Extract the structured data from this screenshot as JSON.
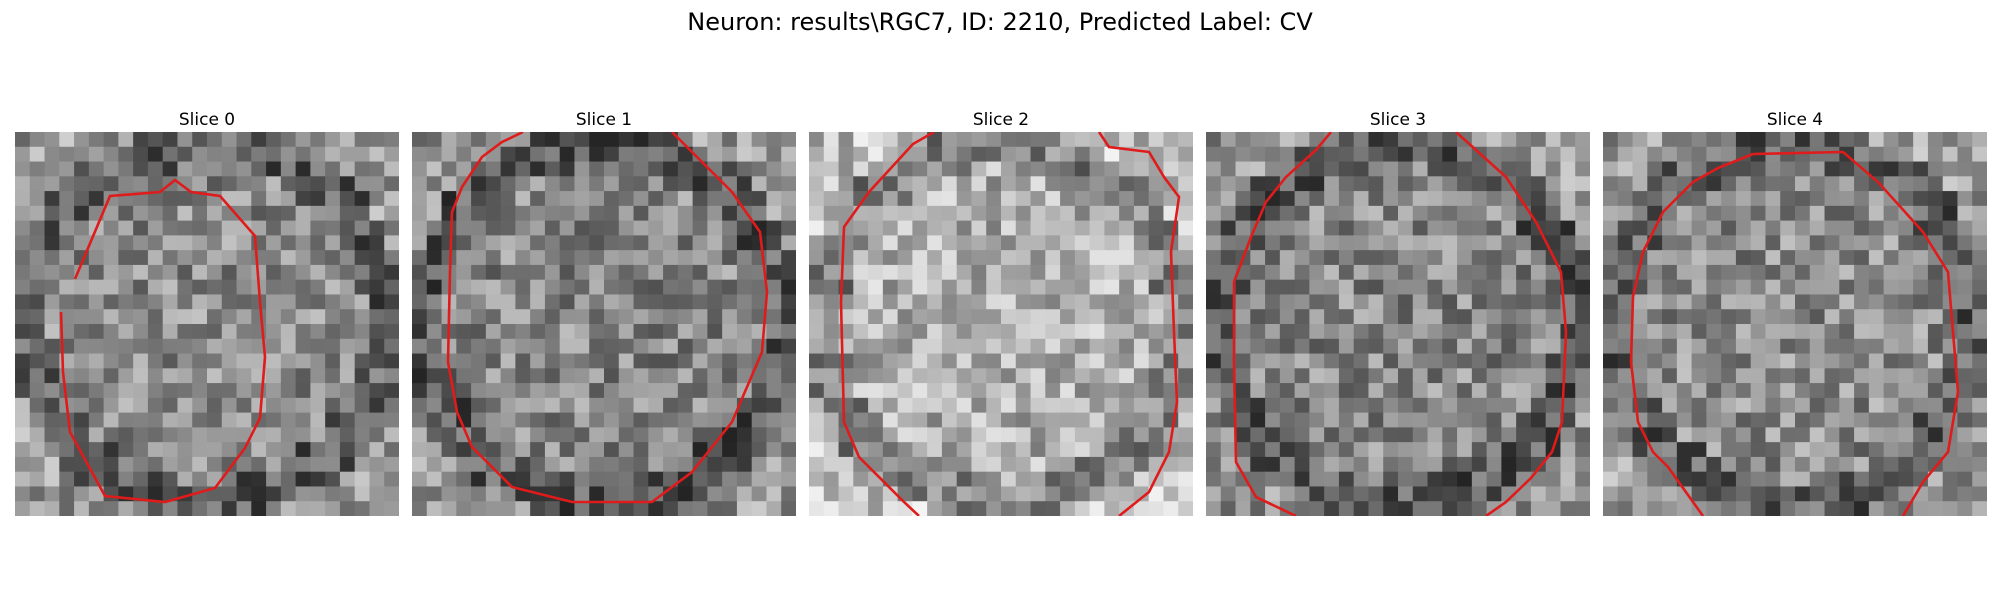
{
  "figure": {
    "title": "Neuron: results\\RGC7, ID: 2210, Predicted Label: CV",
    "panels": [
      {
        "title": "Slice 0",
        "tone": "mixed",
        "contour_color": "#e01b1b"
      },
      {
        "title": "Slice 1",
        "tone": "mid",
        "contour_color": "#e01b1b"
      },
      {
        "title": "Slice 2",
        "tone": "bright",
        "contour_color": "#e01b1b"
      },
      {
        "title": "Slice 3",
        "tone": "mid",
        "contour_color": "#e01b1b"
      },
      {
        "title": "Slice 4",
        "tone": "mixed",
        "contour_color": "#e01b1b"
      }
    ],
    "colormap": "gray"
  }
}
